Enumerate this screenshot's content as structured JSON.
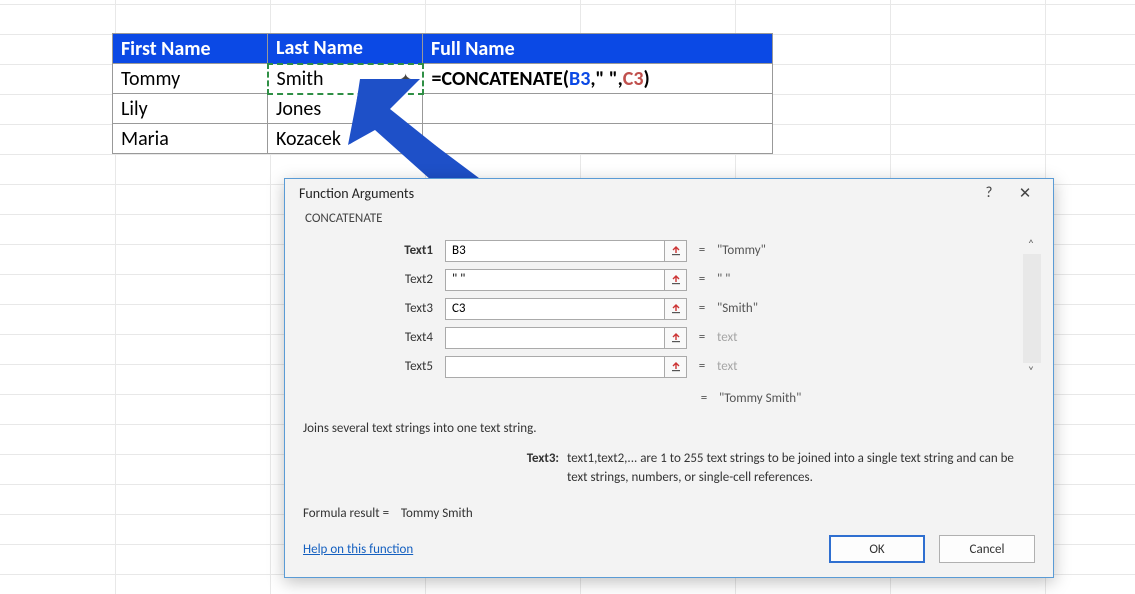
{
  "colors": {
    "header_bg": "#0b49e5",
    "header_fg": "#ffffff",
    "dialog_border": "#5a9bd5",
    "arrow": "#1e50c8",
    "marching_border": "#2f8f45",
    "ref1": "#0b49e5",
    "ref2": "#c0504d",
    "link": "#1560c0"
  },
  "table": {
    "headers": [
      "First Name",
      "Last Name",
      "Full Name"
    ],
    "rows": [
      {
        "first": "Tommy",
        "last": "Smith",
        "full_formula": "=CONCATENATE(B3,\" \",C3)"
      },
      {
        "first": "Lily",
        "last": "Jones",
        "full_formula": ""
      },
      {
        "first": "Maria",
        "last": "Kozacek",
        "full_formula": ""
      }
    ],
    "formula_parts": {
      "prefix": "=CONCATENATE(",
      "ref1": "B3",
      "sep1": ",\" \",",
      "ref2": "C3",
      "suffix": ")"
    }
  },
  "dialog": {
    "title": "Function Arguments",
    "help_tooltip": "?",
    "close_tooltip": "✕",
    "function_name": "CONCATENATE",
    "args": [
      {
        "label": "Text1",
        "bold": true,
        "value": "B3",
        "result": "\"Tommy\"",
        "dim": false
      },
      {
        "label": "Text2",
        "bold": false,
        "value": "\" \"",
        "result": "\" \"",
        "dim": false
      },
      {
        "label": "Text3",
        "bold": false,
        "value": "C3",
        "result": "\"Smith\"",
        "dim": false
      },
      {
        "label": "Text4",
        "bold": false,
        "value": "",
        "result": "text",
        "dim": true
      },
      {
        "label": "Text5",
        "bold": false,
        "value": "",
        "result": "text",
        "dim": true
      }
    ],
    "overall_result": "\"Tommy Smith\"",
    "description": "Joins several text strings into one text string.",
    "arg_help": {
      "label": "Text3:",
      "text": "text1,text2,... are 1 to 255 text strings to be joined into a single text string and can be text strings, numbers, or single-cell references."
    },
    "formula_result_label": "Formula result =",
    "formula_result_value": "Tommy Smith",
    "help_link": "Help on this function",
    "ok_label": "OK",
    "cancel_label": "Cancel",
    "equals": "="
  }
}
